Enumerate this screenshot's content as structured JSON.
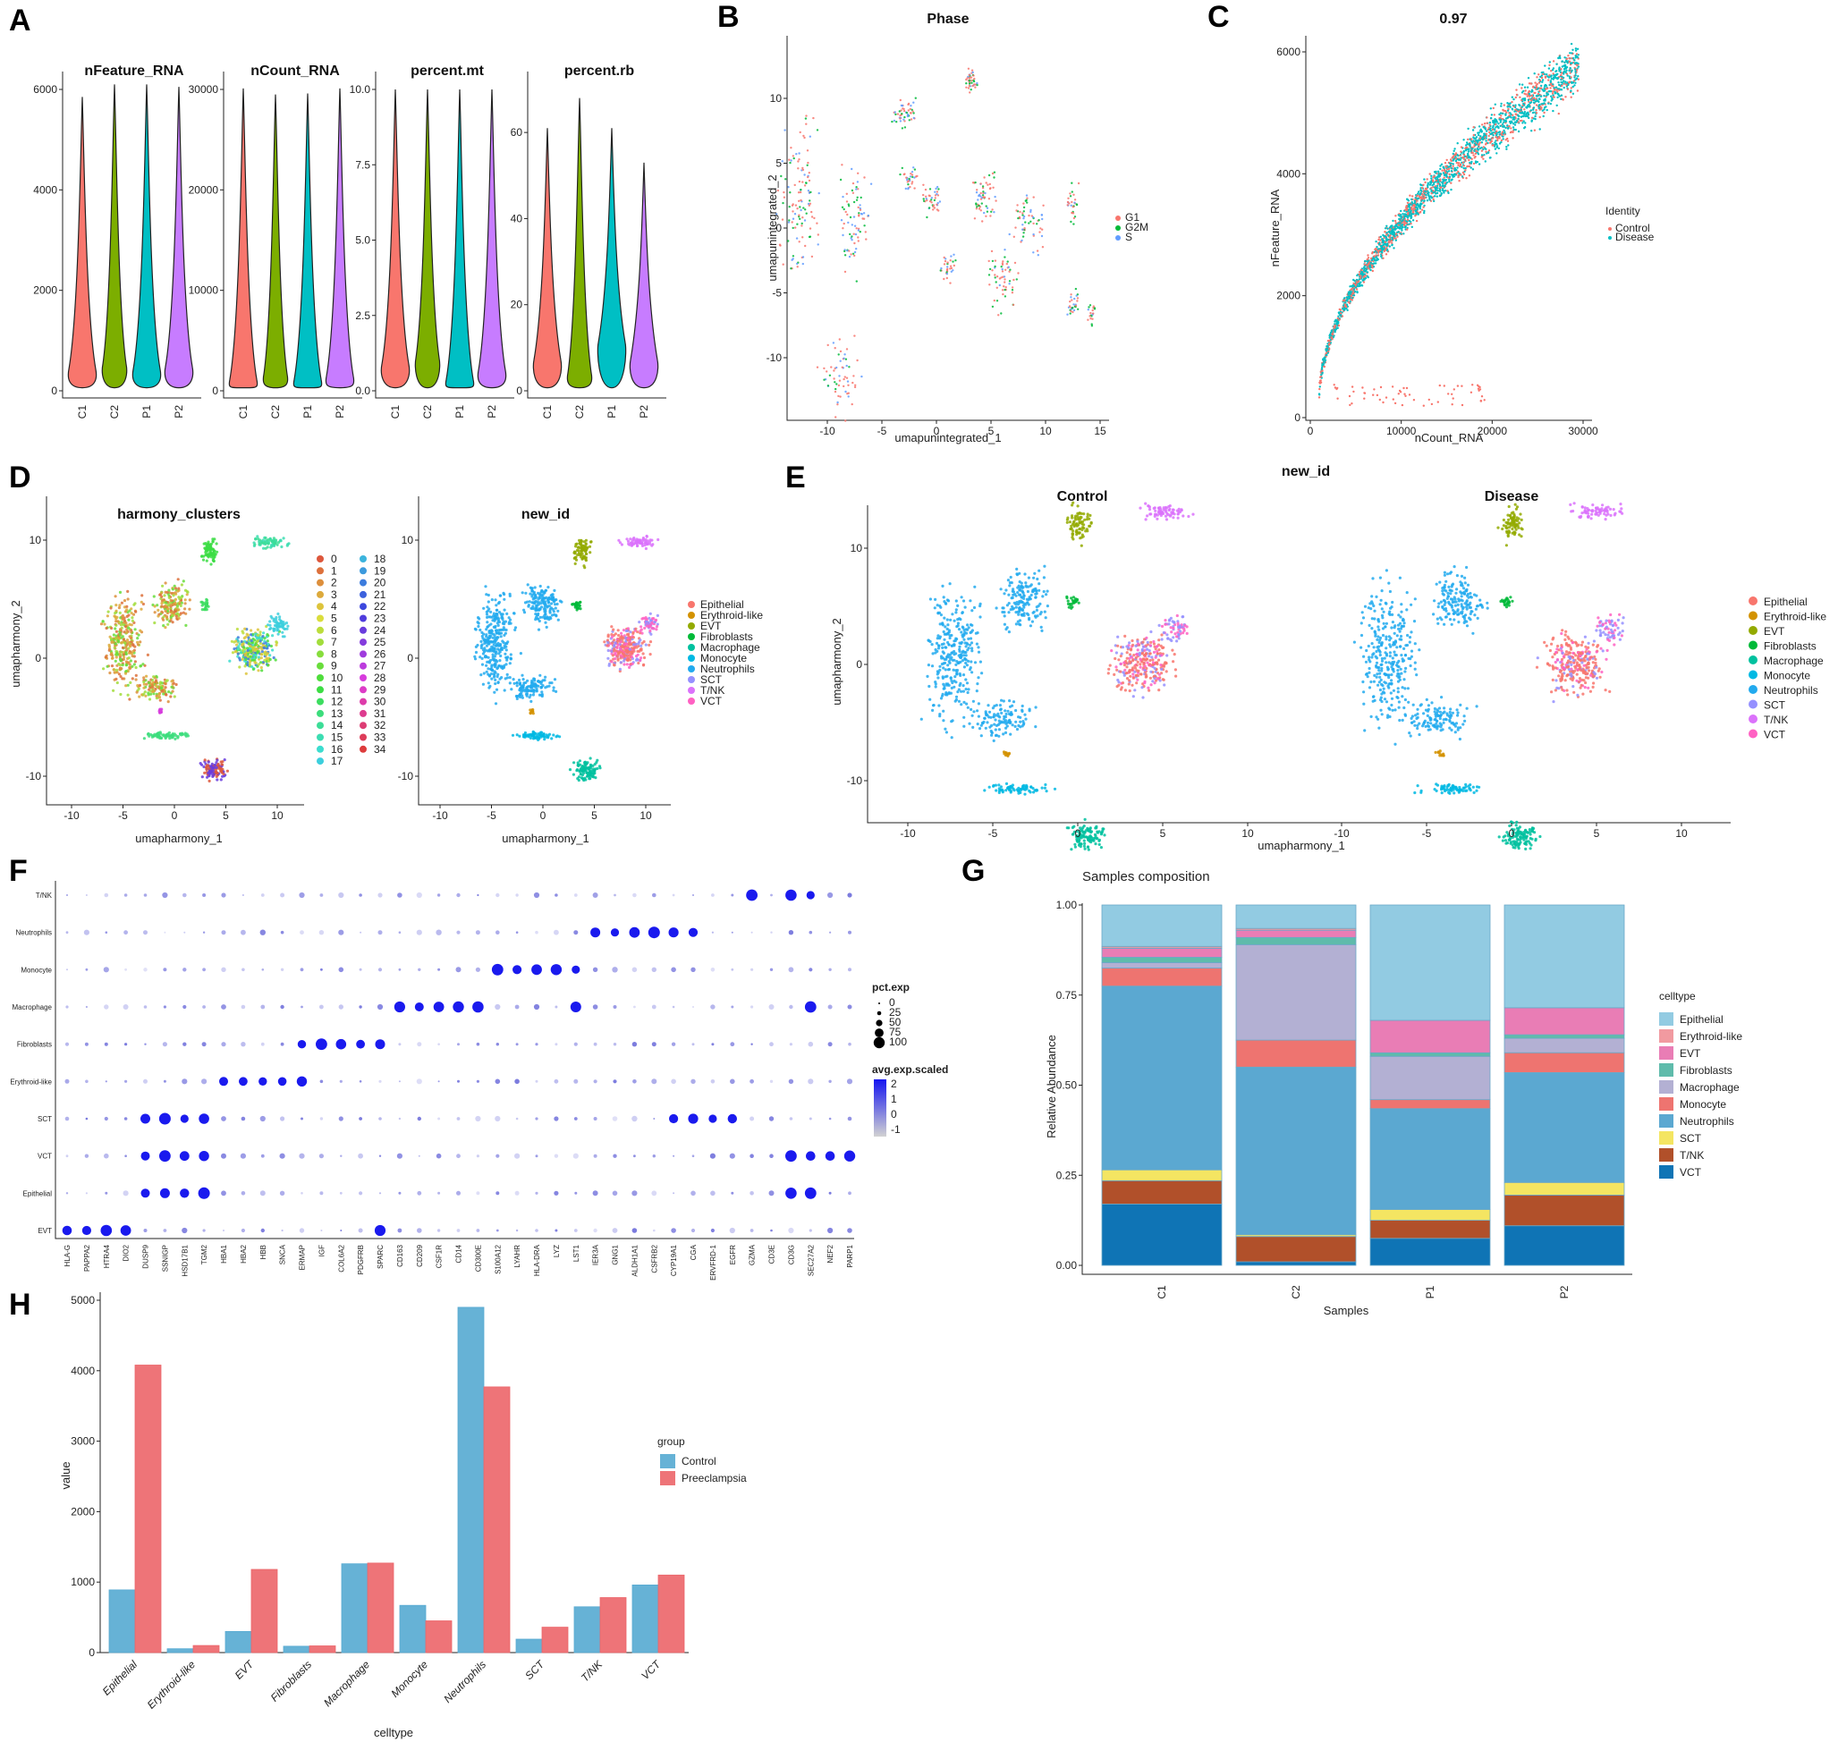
{
  "panel_labels": {
    "A": "A",
    "B": "B",
    "C": "C",
    "D": "D",
    "E": "E",
    "F": "F",
    "G": "G",
    "H": "H"
  },
  "colors": {
    "C1": "#F8766D",
    "C2": "#7CAE00",
    "P1": "#00BFC4",
    "P2": "#C77CFF",
    "control": "#66B2D6",
    "preeclampsia": "#EE7478"
  },
  "chart_data": [
    {
      "id": "A",
      "type": "violin",
      "samples": [
        "C1",
        "C2",
        "P1",
        "P2"
      ],
      "subplots": [
        {
          "title": "nFeature_RNA",
          "ylim": [
            0,
            6000
          ],
          "ticks": [
            "0",
            "2000",
            "4000",
            "6000"
          ],
          "max": [
            5850,
            6100,
            6100,
            6050
          ],
          "mode": [
            500,
            600,
            500,
            550
          ]
        },
        {
          "title": "nCount_RNA",
          "ylim": [
            0,
            30000
          ],
          "ticks": [
            "0",
            "10000",
            "20000",
            "30000"
          ],
          "max": [
            30100,
            29500,
            29600,
            30100
          ],
          "mode": [
            1500,
            2000,
            1500,
            1800
          ]
        },
        {
          "title": "percent.mt",
          "ylim": [
            0,
            10
          ],
          "ticks": [
            "0.0",
            "2.5",
            "5.0",
            "7.5",
            "10.0"
          ],
          "max": [
            10,
            10,
            10,
            10
          ],
          "mode": [
            1,
            1.2,
            0.5,
            0.8
          ]
        },
        {
          "title": "percent.rb",
          "ylim": [
            0,
            70
          ],
          "ticks": [
            "0",
            "20",
            "40",
            "60"
          ],
          "max": [
            61,
            68,
            61,
            53
          ],
          "mode": [
            8,
            5,
            12,
            8
          ]
        }
      ]
    },
    {
      "id": "B",
      "type": "scatter-umap",
      "title": "Phase",
      "xlabel": "umapunintegrated_1",
      "ylabel": "umapunintegrated_2",
      "xticks": [
        "-10",
        "-5",
        "0",
        "5",
        "10",
        "15"
      ],
      "yticks": [
        "-10",
        "-5",
        "0",
        "5",
        "10"
      ],
      "legend": [
        "G1",
        "G2M",
        "S"
      ],
      "legend_colors": [
        "#F8766D",
        "#00BA38",
        "#619CFF"
      ]
    },
    {
      "id": "C",
      "type": "scatter",
      "title": "0.97",
      "xlabel": "nCount_RNA",
      "ylabel": "nFeature_RNA",
      "xticks": [
        "0",
        "10000",
        "20000",
        "30000"
      ],
      "yticks": [
        "0",
        "2000",
        "4000",
        "6000"
      ],
      "legend_title": "Identity",
      "legend": [
        "Control",
        "Disease"
      ],
      "legend_colors": [
        "#F8766D",
        "#00BFC4"
      ]
    },
    {
      "id": "D1",
      "type": "scatter-umap",
      "title": "harmony_clusters",
      "xlabel": "umapharmony_1",
      "ylabel": "umapharmony_2",
      "xticks": [
        "-10",
        "-5",
        "0",
        "5",
        "10"
      ],
      "yticks": [
        "-10",
        "0",
        "10"
      ],
      "legend": [
        "0",
        "1",
        "2",
        "3",
        "4",
        "5",
        "6",
        "7",
        "8",
        "9",
        "10",
        "11",
        "12",
        "13",
        "14",
        "15",
        "16",
        "17",
        "18",
        "19",
        "20",
        "21",
        "22",
        "23",
        "24",
        "25",
        "26",
        "27",
        "28",
        "29",
        "30",
        "31",
        "32",
        "33",
        "34"
      ]
    },
    {
      "id": "D2",
      "type": "scatter-umap",
      "title": "new_id",
      "xlabel": "umapharmony_1",
      "xticks": [
        "-10",
        "-5",
        "0",
        "5",
        "10"
      ],
      "yticks": [
        "-10",
        "0",
        "10"
      ],
      "legend": [
        "Epithelial",
        "Erythroid-like",
        "EVT",
        "Fibroblasts",
        "Macrophage",
        "Monocyte",
        "Neutrophils",
        "SCT",
        "T/NK",
        "VCT"
      ]
    },
    {
      "id": "E",
      "type": "scatter-umap",
      "title": "new_id",
      "facets": [
        "Control",
        "Disease"
      ],
      "xlabel": "umapharmony_1",
      "ylabel": "umapharmony_2",
      "xticks": [
        "-10",
        "-5",
        "0",
        "5",
        "10"
      ],
      "yticks": [
        "-10",
        "0",
        "10"
      ],
      "legend": [
        "Epithelial",
        "Erythroid-like",
        "EVT",
        "Fibroblasts",
        "Macrophage",
        "Monocyte",
        "Neutrophils",
        "SCT",
        "T/NK",
        "VCT"
      ]
    },
    {
      "id": "F",
      "type": "dotplot",
      "rows": [
        "T/NK",
        "Neutrophils",
        "Monocyte",
        "Macrophage",
        "Fibroblasts",
        "Erythroid-like",
        "SCT",
        "VCT",
        "Epithelial",
        "EVT"
      ],
      "genes": [
        "HLA-G",
        "PAPPA2",
        "HTRA4",
        "DIO2",
        "DUSP9",
        "SSNIGP",
        "HSD17B1",
        "TGM2",
        "HBA1",
        "HBA2",
        "HBB",
        "SNCA",
        "ERMAP",
        "IGF",
        "COL6A2",
        "PDGFRB",
        "SPARC",
        "CD163",
        "CD209",
        "CSF1R",
        "CD14",
        "CD300E",
        "S100A12",
        "LYAHR",
        "HLA-DRA",
        "LYZ",
        "LST1",
        "IER3A",
        "GNG1",
        "ALDH1A1",
        "CSFRB2",
        "CYP19A1",
        "CGA",
        "ERVFRD-1",
        "EGFR",
        "GZMA",
        "CD3E",
        "CD3G",
        "SEC27A2",
        "NEF2",
        "PARP1"
      ],
      "hi": [
        [
          35,
          37,
          38
        ],
        [
          27,
          28,
          29,
          30,
          31,
          32
        ],
        [
          22,
          23,
          24,
          25,
          26
        ],
        [
          17,
          18,
          19,
          20,
          21,
          26,
          38
        ],
        [
          12,
          13,
          14,
          15,
          16
        ],
        [
          8,
          9,
          10,
          11,
          12
        ],
        [
          4,
          5,
          6,
          7,
          31,
          32,
          33,
          34
        ],
        [
          4,
          5,
          6,
          7,
          37,
          38,
          39,
          40
        ],
        [
          4,
          5,
          6,
          7,
          37,
          38
        ],
        [
          0,
          1,
          2,
          3,
          16
        ]
      ],
      "legend_size_title": "pct.exp",
      "legend_sizes": [
        "0",
        "25",
        "50",
        "75",
        "100"
      ],
      "legend_color_title": "avg.exp.scaled",
      "legend_color_ticks": [
        "2",
        "1",
        "0",
        "-1"
      ]
    },
    {
      "id": "G",
      "type": "stacked-bar",
      "title": "Samples composition",
      "xlabel": "Samples",
      "ylabel": "Relative Abundance",
      "categories": [
        "C1",
        "C2",
        "P1",
        "P2"
      ],
      "yticks": [
        "0.00",
        "0.25",
        "0.50",
        "0.75",
        "1.00"
      ],
      "ylim": [
        0,
        1
      ],
      "legend_title": "celltype",
      "series": [
        {
          "name": "Epithelial",
          "color": "#92CBE2",
          "values": [
            0.115,
            0.065,
            0.32,
            0.285
          ]
        },
        {
          "name": "Erythroid-like",
          "color": "#F19AA0",
          "values": [
            0.005,
            0.005,
            0.0,
            0.0
          ]
        },
        {
          "name": "EVT",
          "color": "#E97DB5",
          "values": [
            0.025,
            0.02,
            0.09,
            0.075
          ]
        },
        {
          "name": "Fibroblasts",
          "color": "#5FBBAB",
          "values": [
            0.015,
            0.02,
            0.01,
            0.01
          ]
        },
        {
          "name": "Macrophage",
          "color": "#B3B0D3",
          "values": [
            0.015,
            0.265,
            0.12,
            0.04
          ]
        },
        {
          "name": "Monocyte",
          "color": "#EE7470",
          "values": [
            0.05,
            0.075,
            0.025,
            0.055
          ]
        },
        {
          "name": "Neutrophils",
          "color": "#5BA8D1",
          "values": [
            0.51,
            0.465,
            0.28,
            0.305
          ]
        },
        {
          "name": "SCT",
          "color": "#F4E562",
          "values": [
            0.03,
            0.005,
            0.03,
            0.035
          ]
        },
        {
          "name": "T/NK",
          "color": "#B1502A",
          "values": [
            0.065,
            0.07,
            0.05,
            0.085
          ]
        },
        {
          "name": "VCT",
          "color": "#0F74B5",
          "values": [
            0.17,
            0.01,
            0.075,
            0.11
          ]
        }
      ]
    },
    {
      "id": "H",
      "type": "bar",
      "xlabel": "celltype",
      "ylabel": "value",
      "ylim": [
        0,
        5000
      ],
      "yticks": [
        "0",
        "1000",
        "2000",
        "3000",
        "4000",
        "5000"
      ],
      "categories": [
        "Epithelial",
        "Erythroid-like",
        "EVT",
        "Fibroblasts",
        "Macrophage",
        "Monocyte",
        "Neutrophils",
        "SCT",
        "T/NK",
        "VCT"
      ],
      "legend_title": "group",
      "series": [
        {
          "name": "Control",
          "values": [
            890,
            55,
            300,
            90,
            1260,
            670,
            4900,
            190,
            650,
            960
          ]
        },
        {
          "name": "Preeclampsia",
          "values": [
            4080,
            100,
            1180,
            95,
            1270,
            450,
            3770,
            360,
            780,
            1100
          ]
        }
      ]
    }
  ]
}
